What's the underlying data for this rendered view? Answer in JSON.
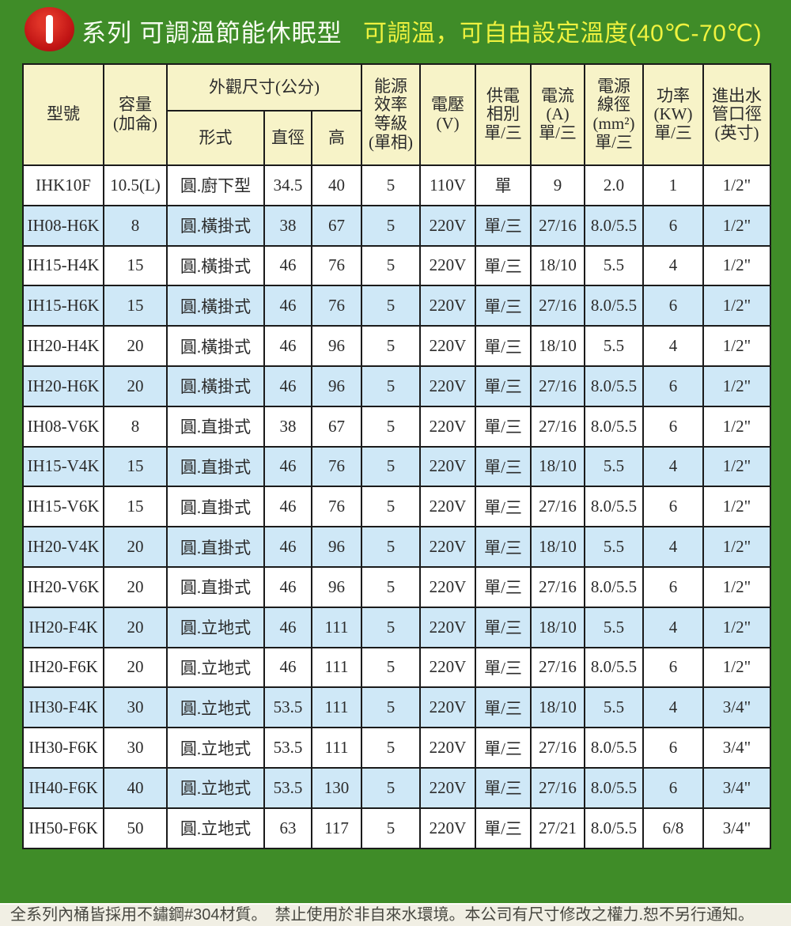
{
  "banner": {
    "icon_letter": "I",
    "series_title": "系列 可調溫節能休眠型",
    "slogan": "可調溫，可自由設定溫度(40℃-70℃)"
  },
  "colors": {
    "page_green": "#3f8c28",
    "header_cream": "#f7f3c8",
    "row_blue": "#cfe8f7",
    "badge_red": "#c01414",
    "slogan_yellow": "#eff23f",
    "border_dark": "#1b1b1b"
  },
  "table": {
    "header": {
      "model": "型號",
      "capacity": "容量\n(加侖)",
      "dimensions_group": "外觀尺寸(公分)",
      "form": "形式",
      "diameter": "直徑",
      "height": "高",
      "energy": "能源\n效率\n等級\n(單相)",
      "voltage": "電壓\n(V)",
      "phase": "供電\n相別\n單/三",
      "current": "電流\n(A)\n單/三",
      "wire": "電源\n線徑\n(mm²)\n單/三",
      "power": "功率\n(KW)\n單/三",
      "pipe": "進出水\n管口徑\n(英寸)"
    },
    "rows": [
      [
        "IHK10F",
        "10.5(L)",
        "圓.廚下型",
        "34.5",
        "40",
        "5",
        "110V",
        "單",
        "9",
        "2.0",
        "1",
        "1/2\""
      ],
      [
        "IH08-H6K",
        "8",
        "圓.橫掛式",
        "38",
        "67",
        "5",
        "220V",
        "單/三",
        "27/16",
        "8.0/5.5",
        "6",
        "1/2\""
      ],
      [
        "IH15-H4K",
        "15",
        "圓.橫掛式",
        "46",
        "76",
        "5",
        "220V",
        "單/三",
        "18/10",
        "5.5",
        "4",
        "1/2\""
      ],
      [
        "IH15-H6K",
        "15",
        "圓.橫掛式",
        "46",
        "76",
        "5",
        "220V",
        "單/三",
        "27/16",
        "8.0/5.5",
        "6",
        "1/2\""
      ],
      [
        "IH20-H4K",
        "20",
        "圓.橫掛式",
        "46",
        "96",
        "5",
        "220V",
        "單/三",
        "18/10",
        "5.5",
        "4",
        "1/2\""
      ],
      [
        "IH20-H6K",
        "20",
        "圓.橫掛式",
        "46",
        "96",
        "5",
        "220V",
        "單/三",
        "27/16",
        "8.0/5.5",
        "6",
        "1/2\""
      ],
      [
        "IH08-V6K",
        "8",
        "圓.直掛式",
        "38",
        "67",
        "5",
        "220V",
        "單/三",
        "27/16",
        "8.0/5.5",
        "6",
        "1/2\""
      ],
      [
        "IH15-V4K",
        "15",
        "圓.直掛式",
        "46",
        "76",
        "5",
        "220V",
        "單/三",
        "18/10",
        "5.5",
        "4",
        "1/2\""
      ],
      [
        "IH15-V6K",
        "15",
        "圓.直掛式",
        "46",
        "76",
        "5",
        "220V",
        "單/三",
        "27/16",
        "8.0/5.5",
        "6",
        "1/2\""
      ],
      [
        "IH20-V4K",
        "20",
        "圓.直掛式",
        "46",
        "96",
        "5",
        "220V",
        "單/三",
        "18/10",
        "5.5",
        "4",
        "1/2\""
      ],
      [
        "IH20-V6K",
        "20",
        "圓.直掛式",
        "46",
        "96",
        "5",
        "220V",
        "單/三",
        "27/16",
        "8.0/5.5",
        "6",
        "1/2\""
      ],
      [
        "IH20-F4K",
        "20",
        "圓.立地式",
        "46",
        "111",
        "5",
        "220V",
        "單/三",
        "18/10",
        "5.5",
        "4",
        "1/2\""
      ],
      [
        "IH20-F6K",
        "20",
        "圓.立地式",
        "46",
        "111",
        "5",
        "220V",
        "單/三",
        "27/16",
        "8.0/5.5",
        "6",
        "1/2\""
      ],
      [
        "IH30-F4K",
        "30",
        "圓.立地式",
        "53.5",
        "111",
        "5",
        "220V",
        "單/三",
        "18/10",
        "5.5",
        "4",
        "3/4\""
      ],
      [
        "IH30-F6K",
        "30",
        "圓.立地式",
        "53.5",
        "111",
        "5",
        "220V",
        "單/三",
        "27/16",
        "8.0/5.5",
        "6",
        "3/4\""
      ],
      [
        "IH40-F6K",
        "40",
        "圓.立地式",
        "53.5",
        "130",
        "5",
        "220V",
        "單/三",
        "27/16",
        "8.0/5.5",
        "6",
        "3/4\""
      ],
      [
        "IH50-F6K",
        "50",
        "圓.立地式",
        "63",
        "117",
        "5",
        "220V",
        "單/三",
        "27/21",
        "8.0/5.5",
        "6/8",
        "3/4\""
      ]
    ]
  },
  "footer": {
    "note": "全系列內桶皆採用不鏽鋼#304材質。　禁止使用於非自來水環境。本公司有尺寸修改之權力.恕不另行通知。"
  }
}
